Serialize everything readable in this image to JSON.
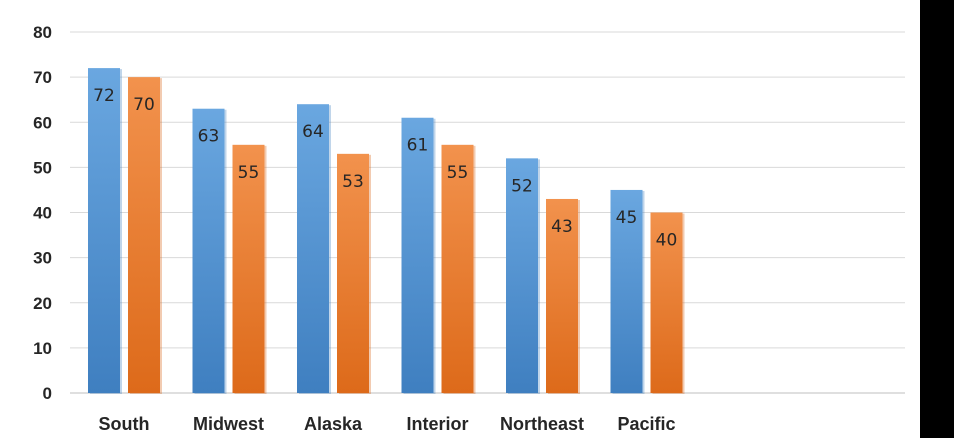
{
  "chart_data": {
    "type": "bar",
    "categories": [
      "South",
      "Midwest",
      "Alaska",
      "Interior",
      "Northeast",
      "Pacific"
    ],
    "series": [
      {
        "values": [
          72,
          63,
          64,
          61,
          52,
          45
        ],
        "color": "#5b9bd5"
      },
      {
        "values": [
          70,
          55,
          53,
          55,
          43,
          40
        ],
        "color": "#ed7d31"
      }
    ],
    "ylim": [
      0,
      80
    ],
    "yticks": [
      0,
      10,
      20,
      30,
      40,
      50,
      60,
      70,
      80
    ],
    "grid": true,
    "data_labels": true,
    "title": "",
    "xlabel": "",
    "ylabel": ""
  }
}
